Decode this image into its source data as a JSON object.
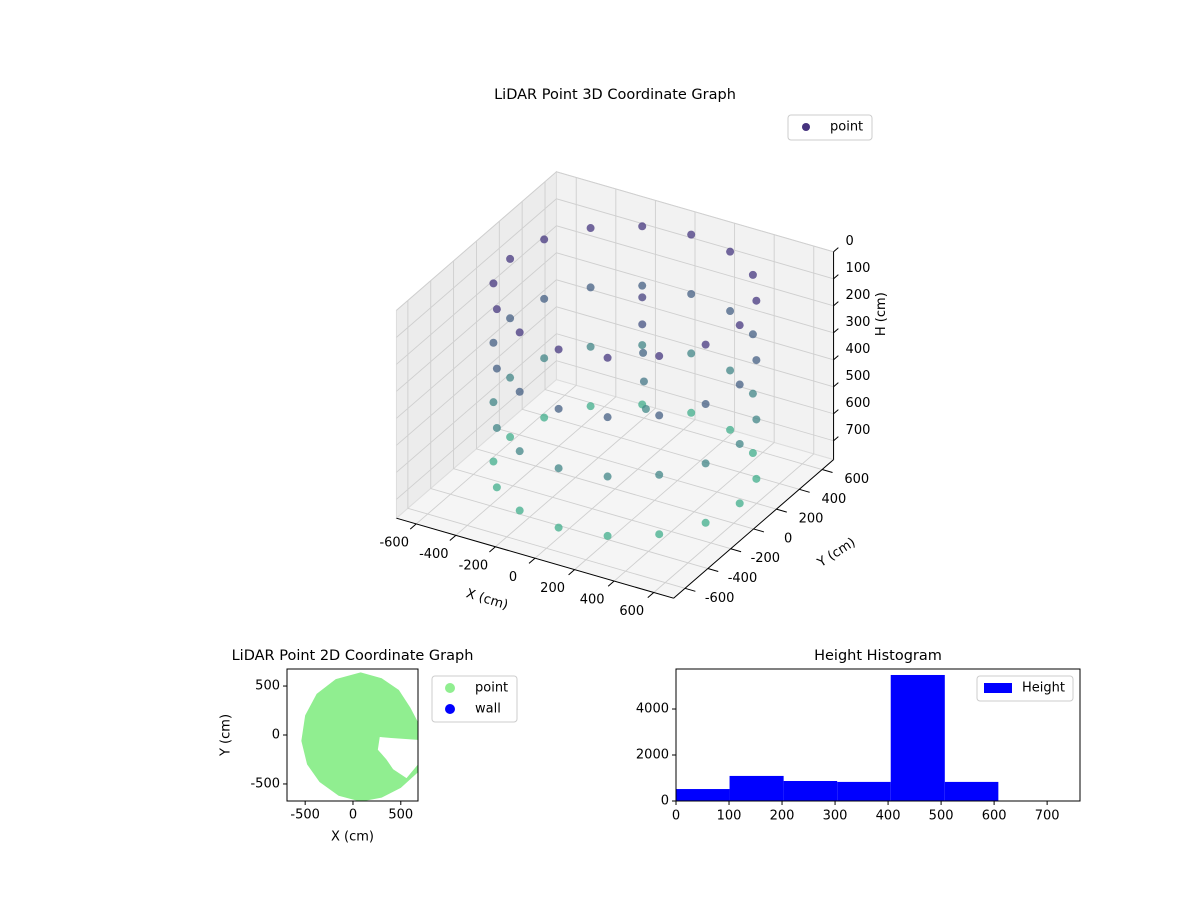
{
  "chart_data": [
    {
      "type": "scatter3d",
      "title": "LiDAR Point 3D Coordinate Graph",
      "x_label": "X (cm)",
      "y_label": "Y (cm)",
      "z_label": "H (cm)",
      "xlim": [
        -700,
        700
      ],
      "ylim": [
        -700,
        700
      ],
      "zlim": [
        770,
        0
      ],
      "xticks": [
        -600,
        -400,
        -200,
        0,
        200,
        400,
        600
      ],
      "yticks": [
        -600,
        -400,
        -200,
        0,
        200,
        400,
        600
      ],
      "zticks": [
        0,
        100,
        200,
        300,
        400,
        500,
        600,
        700
      ],
      "grid": true,
      "legend": "upper right",
      "series": [
        {
          "name": "point",
          "color": "#46337e",
          "color_map": [
            "#46327e",
            "#3fbc8c"
          ],
          "x": [
            630,
            586,
            460,
            272,
            50,
            -172,
            -360,
            -486,
            -530,
            -486,
            -360,
            -172,
            50,
            272,
            460,
            586,
            630,
            586,
            460,
            272,
            50,
            -172,
            -360,
            -486,
            -530,
            -486,
            -360,
            -172,
            50,
            272,
            460,
            586,
            630,
            586,
            460,
            272,
            50,
            -172,
            -360,
            -486,
            -530,
            -486,
            -360,
            -172,
            50,
            272,
            460,
            586,
            630,
            586,
            460,
            272,
            50,
            -172,
            -360,
            -486,
            -530,
            -486,
            -360,
            -172,
            50,
            272,
            460,
            586,
            80,
            80,
            90,
            100,
            110
          ],
          "y": [
            0,
            222,
            410,
            536,
            580,
            536,
            410,
            222,
            0,
            -222,
            -410,
            -536,
            -580,
            -536,
            -410,
            -222,
            0,
            222,
            410,
            536,
            580,
            536,
            410,
            222,
            0,
            -222,
            -410,
            -536,
            -580,
            -536,
            -410,
            -222,
            0,
            222,
            410,
            536,
            580,
            536,
            410,
            222,
            0,
            -222,
            -410,
            -536,
            -580,
            -536,
            -410,
            -222,
            0,
            222,
            410,
            536,
            580,
            536,
            410,
            222,
            0,
            -222,
            -410,
            -536,
            -580,
            -536,
            -410,
            -222,
            100,
            100,
            90,
            80,
            80
          ],
          "z": [
            30,
            30,
            30,
            30,
            30,
            30,
            30,
            30,
            30,
            30,
            30,
            30,
            30,
            30,
            30,
            30,
            250,
            250,
            250,
            250,
            250,
            250,
            250,
            250,
            250,
            250,
            250,
            250,
            250,
            250,
            250,
            250,
            470,
            470,
            470,
            470,
            470,
            470,
            470,
            470,
            470,
            470,
            470,
            470,
            470,
            470,
            470,
            470,
            690,
            690,
            690,
            690,
            690,
            690,
            690,
            690,
            690,
            690,
            690,
            690,
            690,
            690,
            690,
            690,
            80,
            180,
            280,
            380,
            480
          ]
        }
      ]
    },
    {
      "type": "scatter",
      "title": "LiDAR Point 2D Coordinate Graph",
      "x_label": "X (cm)",
      "y_label": "Y (cm)",
      "xlim": [
        -690,
        680
      ],
      "ylim": [
        -674,
        674
      ],
      "xticks": [
        -500,
        0,
        500
      ],
      "yticks": [
        -500,
        0,
        500
      ],
      "legend": "outside right",
      "series": [
        {
          "name": "point",
          "color": "#90ee90",
          "x": [
            80,
            300,
            480,
            600,
            680,
            680,
            400,
            280,
            260,
            350,
            420,
            560,
            680,
            680,
            500,
            300,
            80,
            -150,
            -350,
            -480,
            -540,
            -500,
            -380,
            -180
          ],
          "y": [
            640,
            580,
            460,
            280,
            130,
            -50,
            -30,
            -20,
            -150,
            -250,
            -350,
            -440,
            -300,
            -380,
            -540,
            -640,
            -680,
            -620,
            -480,
            -300,
            -60,
            200,
            420,
            570
          ]
        },
        {
          "name": "wall",
          "color": "#0000ff",
          "x": [],
          "y": []
        }
      ]
    },
    {
      "type": "histogram",
      "title": "Height Histogram",
      "bins": [
        0,
        101,
        203,
        304,
        405,
        507,
        608,
        709
      ],
      "xlim": [
        0,
        762
      ],
      "ylim": [
        0,
        5740
      ],
      "xticks": [
        0,
        100,
        200,
        300,
        400,
        500,
        600,
        700
      ],
      "yticks": [
        0,
        2000,
        4000
      ],
      "legend": "upper right",
      "series": [
        {
          "name": "Height",
          "color": "#0000ff",
          "values": [
            520,
            1090,
            870,
            830,
            5480,
            830,
            10
          ]
        }
      ]
    }
  ]
}
